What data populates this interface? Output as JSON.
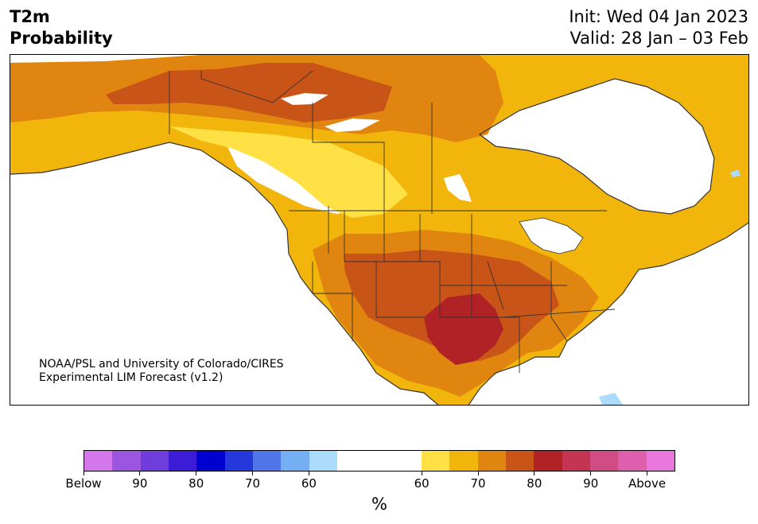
{
  "header": {
    "title_line1": "T2m",
    "title_line2": "Probability",
    "init": "Init: Wed 04 Jan 2023",
    "valid": "Valid: 28 Jan – 03 Feb"
  },
  "credit": {
    "line1": "NOAA/PSL and University of Colorado/CIRES",
    "line2": "Experimental LIM Forecast (v1.2)"
  },
  "colorbar": {
    "colors": [
      "#d477ec",
      "#9b55e0",
      "#6f3ddb",
      "#3c1cd6",
      "#0000d0",
      "#2538dc",
      "#5076ea",
      "#74aef3",
      "#acdcfb",
      "#ffffff",
      "#ffe045",
      "#f2b50c",
      "#e0850f",
      "#c85418",
      "#b02225",
      "#c33553",
      "#d04d83",
      "#dd5fae",
      "#e978dd"
    ],
    "ticks": [
      "Below",
      "90",
      "80",
      "70",
      "60",
      "60",
      "70",
      "80",
      "90",
      "Above"
    ],
    "unit": "%"
  },
  "map": {
    "legend_classes": [
      "60",
      "70",
      "80"
    ],
    "colors": {
      "white": "#ffffff",
      "c60": "#ffe045",
      "c65": "#f2b50c",
      "c70": "#e0850f",
      "c75": "#c85418",
      "c80": "#b02225",
      "lightblue": "#acdcfb",
      "border": "#333333"
    }
  }
}
